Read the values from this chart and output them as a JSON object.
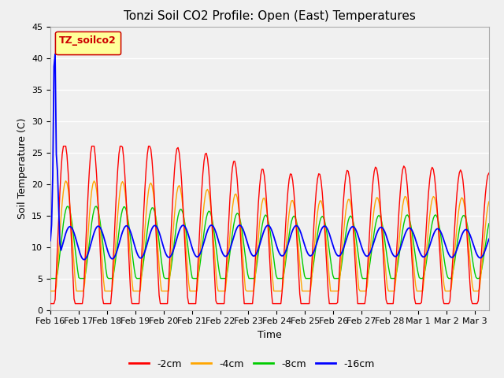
{
  "title": "Tonzi Soil CO2 Profile: Open (East) Temperatures",
  "xlabel": "Time",
  "ylabel": "Soil Temperature (C)",
  "legend_label": "TZ_soilco2",
  "series_labels": [
    "-2cm",
    "-4cm",
    "-8cm",
    "-16cm"
  ],
  "series_colors": [
    "#ff0000",
    "#ffa500",
    "#00cc00",
    "#0000ff"
  ],
  "ylim": [
    0,
    45
  ],
  "xlim": [
    0,
    15.5
  ],
  "bg_color": "#f0f0f0",
  "plot_bg_color": "#f0f0f0",
  "grid_color": "#ffffff",
  "xticklabels": [
    "Feb 16",
    "Feb 17",
    "Feb 18",
    "Feb 19",
    "Feb 20",
    "Feb 21",
    "Feb 22",
    "Feb 23",
    "Feb 24",
    "Feb 25",
    "Feb 26",
    "Feb 27",
    "Feb 28",
    "Mar 1",
    "Mar 2",
    "Mar 3"
  ],
  "yticks": [
    0,
    5,
    10,
    15,
    20,
    25,
    30,
    35,
    40,
    45
  ],
  "title_fontsize": 11,
  "axis_fontsize": 9,
  "tick_fontsize": 8,
  "legend_fontsize": 9,
  "linewidth": 1.0
}
